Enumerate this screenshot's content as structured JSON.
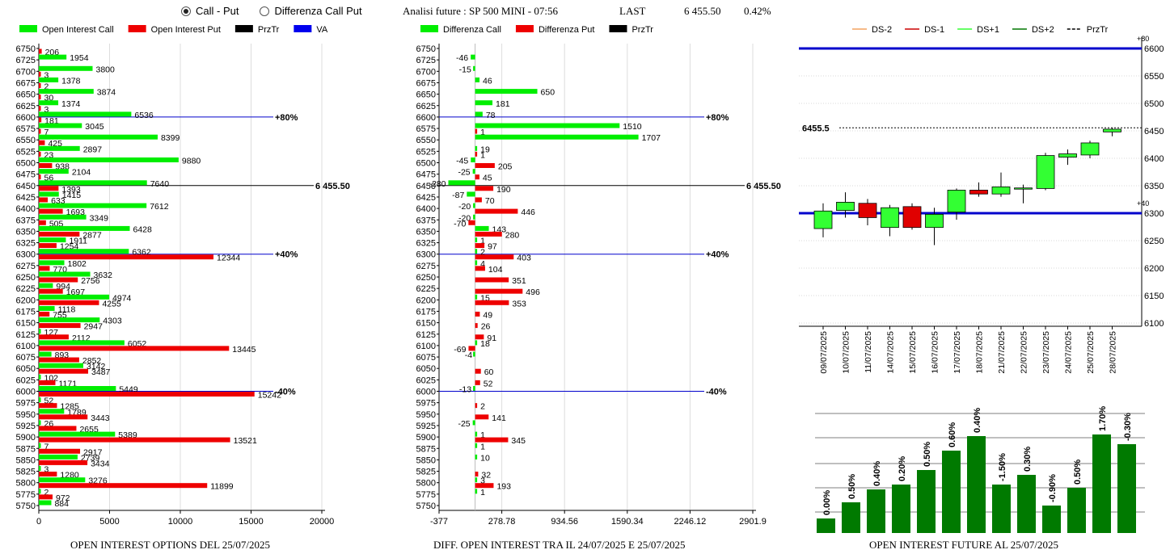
{
  "controls": {
    "radio_call_put": "Call - Put",
    "radio_diff": "Differenza Call Put",
    "selected": "call-put"
  },
  "header": {
    "title": "Analisi future : SP 500 MINI - 07:56",
    "last_label": "LAST",
    "last_value": "6 455.50",
    "change": "0.42%"
  },
  "footers": {
    "left": "OPEN INTEREST OPTIONS DEL 25/07/2025",
    "mid": "DIFF. OPEN INTEREST TRA IL 24/07/2025 E 25/07/2025",
    "right": "OPEN INTEREST FUTURE AL 25/07/2025"
  },
  "colors": {
    "call": "#00ee00",
    "put": "#ee0000",
    "przTr": "#000000",
    "va": "#0000ee",
    "ds_minus2": "#f4a460",
    "ds_minus1": "#cc0000",
    "ds_plus1": "#33ff33",
    "ds_plus2": "#007700",
    "bar_oi": "#007a00",
    "level_line": "#0000cc"
  },
  "chart_data": [
    {
      "type": "bar",
      "orientation": "horizontal",
      "legend": [
        "Open Interest Call",
        "Open Interest Put",
        "PrzTr",
        "VA"
      ],
      "categories": [
        "6750",
        "6725",
        "6700",
        "6675",
        "6650",
        "6625",
        "6600",
        "6575",
        "6550",
        "6525",
        "6500",
        "6475",
        "6450",
        "6425",
        "6400",
        "6375",
        "6350",
        "6325",
        "6300",
        "6275",
        "6250",
        "6225",
        "6200",
        "6175",
        "6150",
        "6125",
        "6100",
        "6075",
        "6050",
        "6025",
        "6000",
        "5975",
        "5950",
        "5925",
        "5900",
        "5875",
        "5850",
        "5825",
        "5800",
        "5775",
        "5750"
      ],
      "series": [
        {
          "name": "Open Interest Call",
          "values": [
            null,
            1954,
            3800,
            1378,
            3874,
            1374,
            6536,
            3045,
            8399,
            2897,
            9880,
            2104,
            7640,
            1415,
            7612,
            3349,
            6428,
            1911,
            6362,
            1802,
            3632,
            994,
            4974,
            1118,
            4303,
            127,
            6052,
            893,
            3142,
            102,
            5449,
            52,
            1789,
            26,
            5389,
            7,
            2739,
            3,
            3276,
            2,
            884
          ]
        },
        {
          "name": "Open Interest Put",
          "values": [
            206,
            null,
            3,
            2,
            30,
            3,
            181,
            7,
            425,
            23,
            938,
            56,
            1393,
            633,
            1693,
            505,
            2877,
            1254,
            12344,
            770,
            2756,
            1697,
            4255,
            755,
            2947,
            2112,
            13445,
            2852,
            3487,
            1171,
            15242,
            1285,
            3443,
            2655,
            13521,
            2917,
            3434,
            1280,
            11899,
            972,
            null
          ]
        }
      ],
      "reference_lines": [
        {
          "strike": "6600",
          "label": "+80%"
        },
        {
          "strike": "6450",
          "label": "6455.50"
        },
        {
          "strike": "6300",
          "label": "+40%"
        },
        {
          "strike": "6000",
          "label": "-40%"
        }
      ],
      "x_ticks": [
        "0",
        "5000",
        "10000",
        "15000",
        "20000"
      ],
      "xlim": [
        0,
        20000
      ]
    },
    {
      "type": "bar",
      "orientation": "horizontal",
      "legend": [
        "Differenza Call",
        "Differenza Put",
        "PrzTr"
      ],
      "categories": [
        "6750",
        "6725",
        "6700",
        "6675",
        "6650",
        "6625",
        "6600",
        "6575",
        "6550",
        "6525",
        "6500",
        "6475",
        "6450",
        "6425",
        "6400",
        "6375",
        "6350",
        "6325",
        "6300",
        "6275",
        "6250",
        "6225",
        "6200",
        "6175",
        "6150",
        "6125",
        "6100",
        "6075",
        "6050",
        "6025",
        "6000",
        "5975",
        "5950",
        "5925",
        "5900",
        "5875",
        "5850",
        "5825",
        "5800",
        "5775",
        "5750"
      ],
      "series": [
        {
          "name": "Differenza Call",
          "values": [
            null,
            -46,
            -15,
            46,
            650,
            181,
            78,
            1510,
            1707,
            19,
            -45,
            -25,
            -280,
            -87,
            -20,
            -20,
            143,
            1,
            2,
            4,
            null,
            null,
            15,
            null,
            null,
            null,
            18,
            -4,
            null,
            null,
            -13,
            null,
            null,
            -25,
            1,
            1,
            10,
            null,
            3,
            1,
            null
          ]
        },
        {
          "name": "Differenza Put",
          "values": [
            null,
            null,
            null,
            null,
            null,
            null,
            null,
            1,
            null,
            1,
            205,
            45,
            190,
            70,
            446,
            -70,
            280,
            97,
            403,
            104,
            351,
            496,
            353,
            49,
            26,
            91,
            -69,
            null,
            60,
            52,
            null,
            2,
            141,
            null,
            345,
            null,
            null,
            32,
            193,
            null,
            null
          ]
        }
      ],
      "reference_lines": [
        {
          "strike": "6600",
          "label": "+80%"
        },
        {
          "strike": "6450",
          "label": "6455.50"
        },
        {
          "strike": "6300",
          "label": "+40%"
        },
        {
          "strike": "6000",
          "label": "-40%"
        }
      ],
      "x_ticks": [
        "-377",
        "278.78",
        "934.56",
        "1590.34",
        "2246.12",
        "2901.9"
      ],
      "xlim": [
        -377,
        2901.9
      ]
    },
    {
      "type": "candlestick",
      "legend": [
        "DS-2",
        "DS-1",
        "DS+1",
        "DS+2",
        "PrzTr"
      ],
      "dates": [
        "09/07/2025",
        "10/07/2025",
        "11/07/2025",
        "14/07/2025",
        "15/07/2025",
        "16/07/2025",
        "17/07/2025",
        "18/07/2025",
        "21/07/2025",
        "22/07/2025",
        "23/07/2025",
        "24/07/2025",
        "25/07/2025",
        "28/07/2025"
      ],
      "ohlc": [
        [
          6272,
          6318,
          6256,
          6304
        ],
        [
          6305,
          6338,
          6292,
          6320
        ],
        [
          6318,
          6326,
          6278,
          6292
        ],
        [
          6274,
          6315,
          6258,
          6310
        ],
        [
          6312,
          6318,
          6270,
          6274
        ],
        [
          6274,
          6310,
          6242,
          6298
        ],
        [
          6302,
          6345,
          6288,
          6342
        ],
        [
          6342,
          6356,
          6330,
          6335
        ],
        [
          6335,
          6374,
          6330,
          6348
        ],
        [
          6346,
          6352,
          6318,
          6346
        ],
        [
          6345,
          6410,
          6342,
          6405
        ],
        [
          6402,
          6416,
          6388,
          6408
        ],
        [
          6406,
          6432,
          6400,
          6428
        ],
        [
          6448,
          6456,
          6440,
          6453
        ]
      ],
      "y_ticks": [
        "6100",
        "6150",
        "6200",
        "6250",
        "6300",
        "6350",
        "6400",
        "6450",
        "6500",
        "6550",
        "6600"
      ],
      "ylim": [
        6100,
        6600
      ],
      "price_label": "6455.5",
      "levels": [
        {
          "value": 6600,
          "label": "+80"
        },
        {
          "value": 6300,
          "label": "+40"
        }
      ]
    },
    {
      "type": "bar",
      "labels": [
        "0.00%",
        "0.50%",
        "0.40%",
        "0.20%",
        "0.50%",
        "0.60%",
        "0.40%",
        "-1.50%",
        "0.30%",
        "-0.90%",
        "0.50%",
        "1.70%",
        "-0.30%"
      ]
    }
  ]
}
